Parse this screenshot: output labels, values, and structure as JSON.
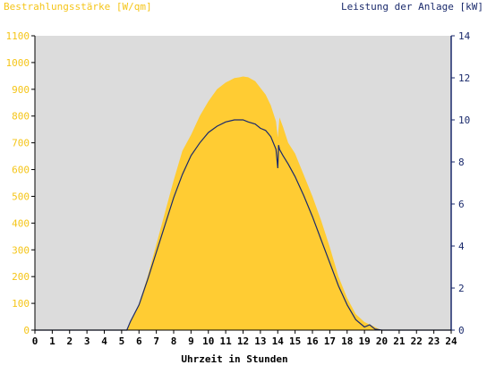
{
  "chart_data": {
    "type": "area",
    "title_left": "Bestrahlungsstärke [W/qm]",
    "title_right": "Leistung der Anlage [kW]",
    "xlabel": "Uhrzeit in Stunden",
    "x_ticks": [
      "0",
      "1",
      "2",
      "3",
      "4",
      "5",
      "6",
      "7",
      "8",
      "9",
      "10",
      "11",
      "12",
      "13",
      "14",
      "15",
      "16",
      "17",
      "18",
      "19",
      "20",
      "21",
      "22",
      "23",
      "24"
    ],
    "xlim": [
      0,
      24
    ],
    "y_left": {
      "ticks": [
        "0",
        "100",
        "200",
        "300",
        "400",
        "500",
        "600",
        "700",
        "800",
        "900",
        "1000",
        "1100"
      ],
      "lim": [
        0,
        1100
      ]
    },
    "y_right": {
      "ticks": [
        "0",
        "2",
        "4",
        "6",
        "8",
        "10",
        "12",
        "14"
      ],
      "lim": [
        0,
        14
      ]
    },
    "grid": false,
    "colors": {
      "plot_bg": "#dcdcdc",
      "irradiance": "#ffcc33",
      "power": "#1a2a6c",
      "left_axis_text": "#f5c518",
      "right_axis_text": "#1a2a6c"
    },
    "series": [
      {
        "name": "Bestrahlungsstärke [W/qm]",
        "axis": "left",
        "x": [
          0,
          5.3,
          5.5,
          5.8,
          6,
          6.5,
          7,
          7.5,
          8,
          8.5,
          9,
          9.5,
          10,
          10.5,
          11,
          11.5,
          11.8,
          12,
          12.3,
          12.7,
          13,
          13.3,
          13.6,
          13.9,
          14,
          14.1,
          14.3,
          14.6,
          15,
          15.5,
          16,
          16.5,
          17,
          17.5,
          18,
          18.5,
          19,
          19.5,
          19.8,
          20,
          24
        ],
        "values": [
          0,
          0,
          30,
          70,
          100,
          200,
          320,
          440,
          560,
          670,
          730,
          800,
          855,
          900,
          925,
          942,
          945,
          948,
          945,
          930,
          905,
          880,
          840,
          780,
          720,
          795,
          760,
          700,
          660,
          580,
          500,
          410,
          310,
          200,
          120,
          60,
          30,
          15,
          5,
          0,
          0
        ]
      },
      {
        "name": "Leistung der Anlage [kW]",
        "axis": "right",
        "x": [
          0,
          5.3,
          5.5,
          6,
          6.5,
          7,
          7.5,
          8,
          8.5,
          9,
          9.5,
          10,
          10.5,
          11,
          11.5,
          12,
          12.3,
          12.7,
          13,
          13.3,
          13.6,
          13.9,
          14,
          14.05,
          14.1,
          14.3,
          14.6,
          15,
          15.5,
          16,
          16.5,
          17,
          17.5,
          18,
          18.5,
          19,
          19.3,
          19.6,
          20,
          24
        ],
        "values": [
          0,
          0,
          0.4,
          1.2,
          2.4,
          3.7,
          5.0,
          6.3,
          7.4,
          8.3,
          8.9,
          9.4,
          9.7,
          9.9,
          10.0,
          10.0,
          9.9,
          9.8,
          9.6,
          9.5,
          9.2,
          8.6,
          7.7,
          8.8,
          8.6,
          8.3,
          7.9,
          7.3,
          6.4,
          5.4,
          4.3,
          3.2,
          2.1,
          1.2,
          0.5,
          0.15,
          0.25,
          0.05,
          0,
          0
        ]
      }
    ]
  }
}
